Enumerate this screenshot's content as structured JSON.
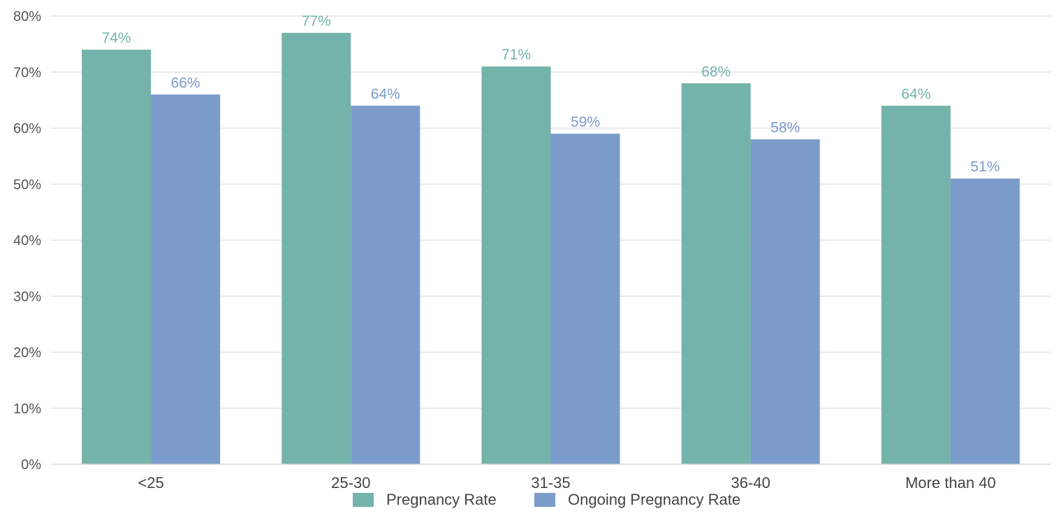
{
  "chart_data": {
    "type": "bar",
    "categories": [
      "<25",
      "25-30",
      "31-35",
      "36-40",
      "More than 40"
    ],
    "series": [
      {
        "name": "Pregnancy Rate",
        "values": [
          74,
          77,
          71,
          68,
          64
        ],
        "labels": [
          "74%",
          "77%",
          "71%",
          "68%",
          "64%"
        ],
        "color": "#74b3aa"
      },
      {
        "name": "Ongoing Pregnancy Rate",
        "values": [
          66,
          64,
          59,
          58,
          51
        ],
        "labels": [
          "66%",
          "64%",
          "59%",
          "58%",
          "51%"
        ],
        "color": "#7b9bcb"
      }
    ],
    "ylim": [
      0,
      80
    ],
    "yticks": [
      0,
      10,
      20,
      30,
      40,
      50,
      60,
      70,
      80
    ],
    "ytick_labels": [
      "0%",
      "10%",
      "20%",
      "30%",
      "40%",
      "50%",
      "60%",
      "70%",
      "80%"
    ],
    "grid": true,
    "legend_position": "bottom"
  }
}
